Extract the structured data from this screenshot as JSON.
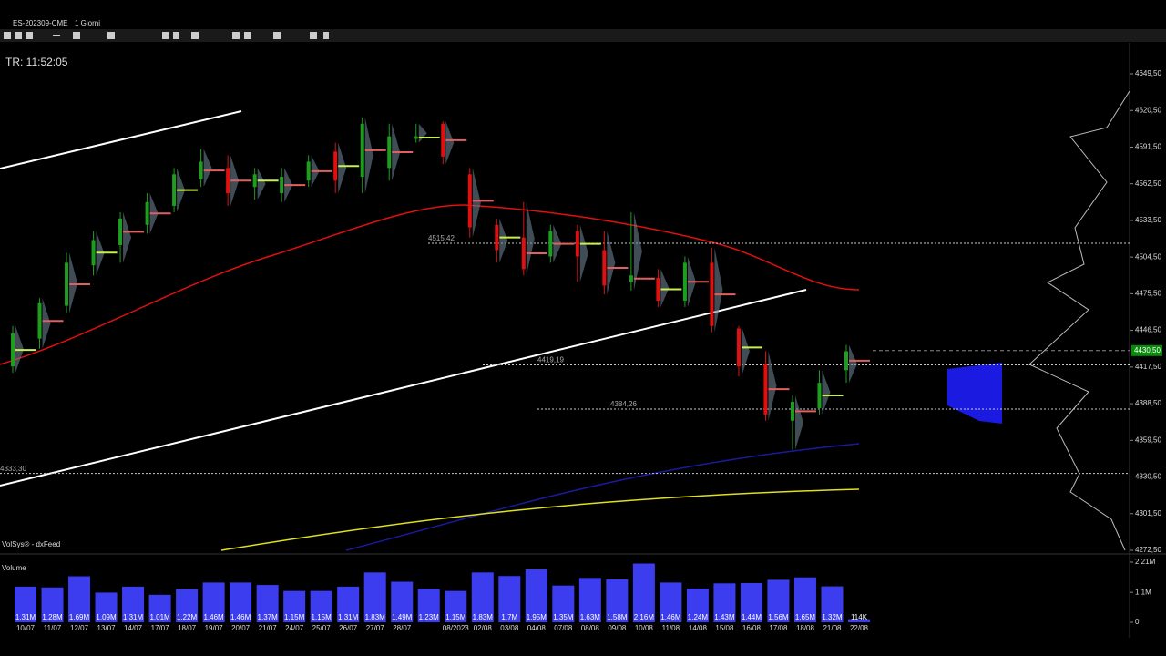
{
  "chart_data": {
    "type": "candlestick",
    "symbol": "ES-202309-CME",
    "timeframe": "1 Giorni",
    "timer": "TR: 11:52:05",
    "feed": "VolSys® - dxFeed",
    "categories": [
      "10/07",
      "11/07",
      "12/07",
      "13/07",
      "14/07",
      "17/07",
      "18/07",
      "19/07",
      "20/07",
      "21/07",
      "24/07",
      "25/07",
      "26/07",
      "27/07",
      "28/07",
      null,
      "08/2023",
      "02/08",
      "03/08",
      "04/08",
      "07/08",
      "08/08",
      "09/08",
      "10/08",
      "11/08",
      "14/08",
      "15/08",
      "16/08",
      "17/08",
      "18/08",
      "21/08",
      "22/08"
    ],
    "open": [
      4418,
      4440,
      4466,
      4498,
      4514,
      4530,
      4545,
      4566,
      4575,
      4560,
      4555,
      4565,
      4588,
      4568,
      4575,
      4598,
      4610,
      4570,
      4530,
      4520,
      4505,
      4525,
      4510,
      4485,
      4488,
      4470,
      4500,
      4448,
      4420,
      4375,
      4385,
      4415
    ],
    "high": [
      4450,
      4472,
      4508,
      4525,
      4540,
      4555,
      4575,
      4590,
      4585,
      4575,
      4575,
      4585,
      4595,
      4615,
      4610,
      4610,
      4612,
      4575,
      4535,
      4548,
      4530,
      4530,
      4525,
      4540,
      4495,
      4505,
      4512,
      4450,
      4430,
      4395,
      4415,
      4435
    ],
    "low": [
      4413,
      4432,
      4460,
      4490,
      4500,
      4523,
      4540,
      4560,
      4545,
      4550,
      4548,
      4560,
      4555,
      4555,
      4565,
      4595,
      4578,
      4520,
      4500,
      4490,
      4500,
      4485,
      4475,
      4478,
      4465,
      4465,
      4445,
      4410,
      4375,
      4352,
      4380,
      4405
    ],
    "close": [
      4444,
      4468,
      4500,
      4518,
      4535,
      4548,
      4570,
      4580,
      4555,
      4570,
      4568,
      4580,
      4565,
      4610,
      4600,
      4600,
      4584,
      4528,
      4510,
      4495,
      4525,
      4505,
      4482,
      4490,
      4470,
      4500,
      4450,
      4418,
      4380,
      4390,
      4405,
      4430
    ],
    "up_color": "#1e9e1e",
    "down_color": "#e01010",
    "ylim": [
      4272.5,
      4649.5
    ],
    "yticks": [
      {
        "value": 4649.5,
        "label": "4649,50"
      },
      {
        "value": 4620.5,
        "label": "4620,50"
      },
      {
        "value": 4591.5,
        "label": "4591,50"
      },
      {
        "value": 4562.5,
        "label": "4562,50"
      },
      {
        "value": 4533.5,
        "label": "4533,50"
      },
      {
        "value": 4504.5,
        "label": "4504,50"
      },
      {
        "value": 4475.5,
        "label": "4475,50"
      },
      {
        "value": 4446.5,
        "label": "4446,50"
      },
      {
        "value": 4417.5,
        "label": "4417,50"
      },
      {
        "value": 4388.5,
        "label": "4388,50"
      },
      {
        "value": 4359.5,
        "label": "4359,50"
      },
      {
        "value": 4330.5,
        "label": "4330,50"
      },
      {
        "value": 4301.5,
        "label": "4301,50"
      },
      {
        "value": 4272.5,
        "label": "4272,50"
      }
    ],
    "levels": [
      {
        "value": 4515.42,
        "label": "4515,42"
      },
      {
        "value": 4419.19,
        "label": "4419,19"
      },
      {
        "value": 4384.26,
        "label": "4384,26"
      },
      {
        "value": 4333.3,
        "label": "4333,30"
      }
    ],
    "last_price": {
      "value": 4430.5,
      "label": "4430,50"
    },
    "volume": {
      "title": "Volume",
      "color": "#3d3df0",
      "values": [
        1310000,
        1280000,
        1690000,
        1090000,
        1310000,
        1010000,
        1220000,
        1460000,
        1460000,
        1370000,
        1150000,
        1150000,
        1310000,
        1830000,
        1490000,
        1230000,
        1150000,
        1830000,
        1700000,
        1950000,
        1350000,
        1630000,
        1580000,
        2160000,
        1460000,
        1240000,
        1430000,
        1440000,
        1560000,
        1650000,
        1320000,
        114000
      ],
      "value_labels": [
        "1,31M",
        "1,28M",
        "1,69M",
        "1,09M",
        "1,31M",
        "1,01M",
        "1,22M",
        "1,46M",
        "1,46M",
        "1,37M",
        "1,15M",
        "1,15M",
        "1,31M",
        "1,83M",
        "1,49M",
        "1,23M",
        "1,15M",
        "1,83M",
        "1,7M",
        "1,95M",
        "1,35M",
        "1,63M",
        "1,58M",
        "2,16M",
        "1,46M",
        "1,24M",
        "1,43M",
        "1,44M",
        "1,56M",
        "1,65M",
        "1,32M",
        "114K"
      ],
      "ylim": [
        0,
        2210000
      ],
      "yticks": [
        {
          "value": 2210000,
          "label": "2,21M"
        },
        {
          "value": 1100000,
          "label": "1,1M"
        },
        0
      ]
    }
  }
}
